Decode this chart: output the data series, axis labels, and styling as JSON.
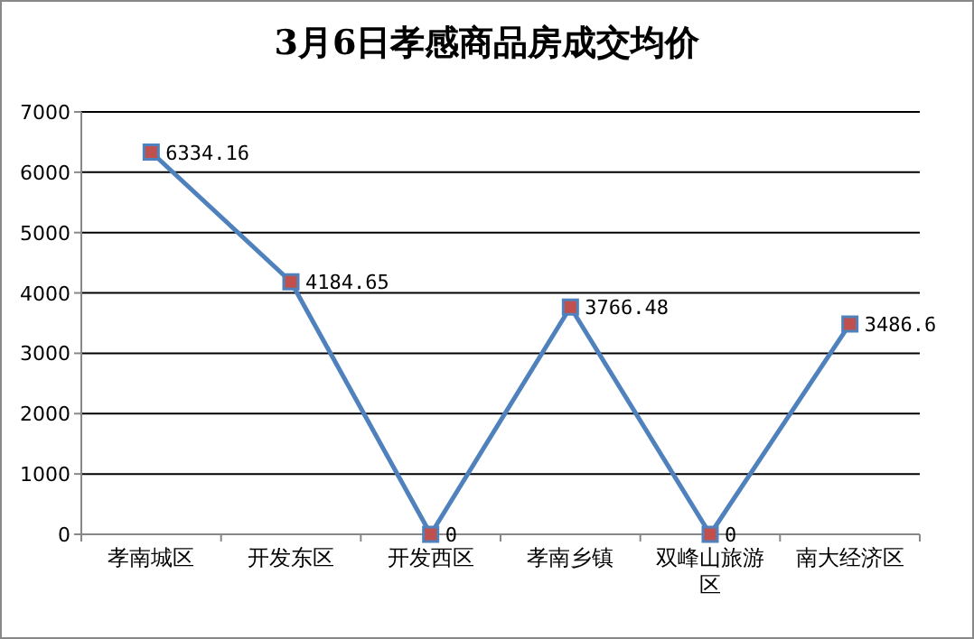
{
  "chart_data": {
    "type": "line",
    "title": "3月6日孝感商品房成交均价",
    "categories": [
      "孝南城区",
      "开发东区",
      "开发西区",
      "孝南乡镇",
      "双峰山旅游区",
      "南大经济区"
    ],
    "series": [
      {
        "color": "#4f81bd",
        "values": [
          6334.16,
          4184.65,
          0,
          3766.48,
          0,
          3486.6
        ]
      }
    ],
    "ylim": [
      0,
      7000
    ],
    "yticks": [
      0,
      1000,
      2000,
      3000,
      4000,
      5000,
      6000,
      7000
    ],
    "grid": "y",
    "marker": "square",
    "line_style": "solid",
    "data_labels": true
  }
}
